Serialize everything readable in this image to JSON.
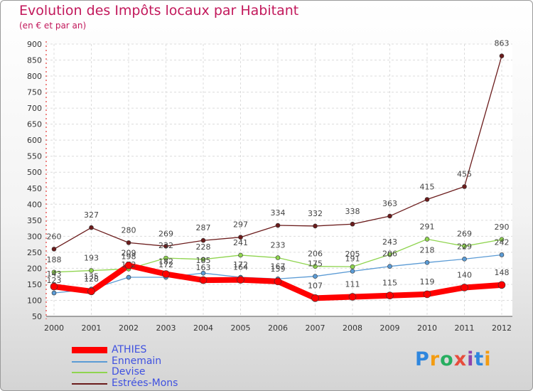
{
  "title": "Evolution des Impôts locaux par Habitant",
  "subtitle": "(en € et par an)",
  "brand": "Proxiti",
  "chart_data": {
    "type": "line",
    "x": [
      "2000",
      "2001",
      "2002",
      "2003",
      "2004",
      "2005",
      "2006",
      "2007",
      "2008",
      "2009",
      "2010",
      "2011",
      "2012"
    ],
    "ylim": [
      50,
      900
    ],
    "yticks": [
      50,
      100,
      150,
      200,
      250,
      300,
      350,
      400,
      450,
      500,
      550,
      600,
      650,
      700,
      750,
      800,
      850,
      900
    ],
    "series": [
      {
        "name": "ATHIES",
        "color": "#ff0000",
        "values": [
          143,
          128,
          209,
          182,
          163,
          164,
          159,
          107,
          111,
          115,
          119,
          140,
          148
        ]
      },
      {
        "name": "Ennemain",
        "color": "#5b9bd5",
        "values": [
          123,
          135,
          172,
          172,
          185,
          172,
          167,
          175,
          191,
          206,
          218,
          229,
          242
        ]
      },
      {
        "name": "Devise",
        "color": "#8fd44f",
        "values": [
          188,
          193,
          198,
          232,
          228,
          241,
          233,
          206,
          205,
          243,
          291,
          269,
          290
        ]
      },
      {
        "name": "Estrées-Mons",
        "color": "#6b1c1c",
        "values": [
          260,
          327,
          280,
          269,
          287,
          297,
          334,
          332,
          338,
          363,
          415,
          455,
          863
        ]
      }
    ]
  }
}
